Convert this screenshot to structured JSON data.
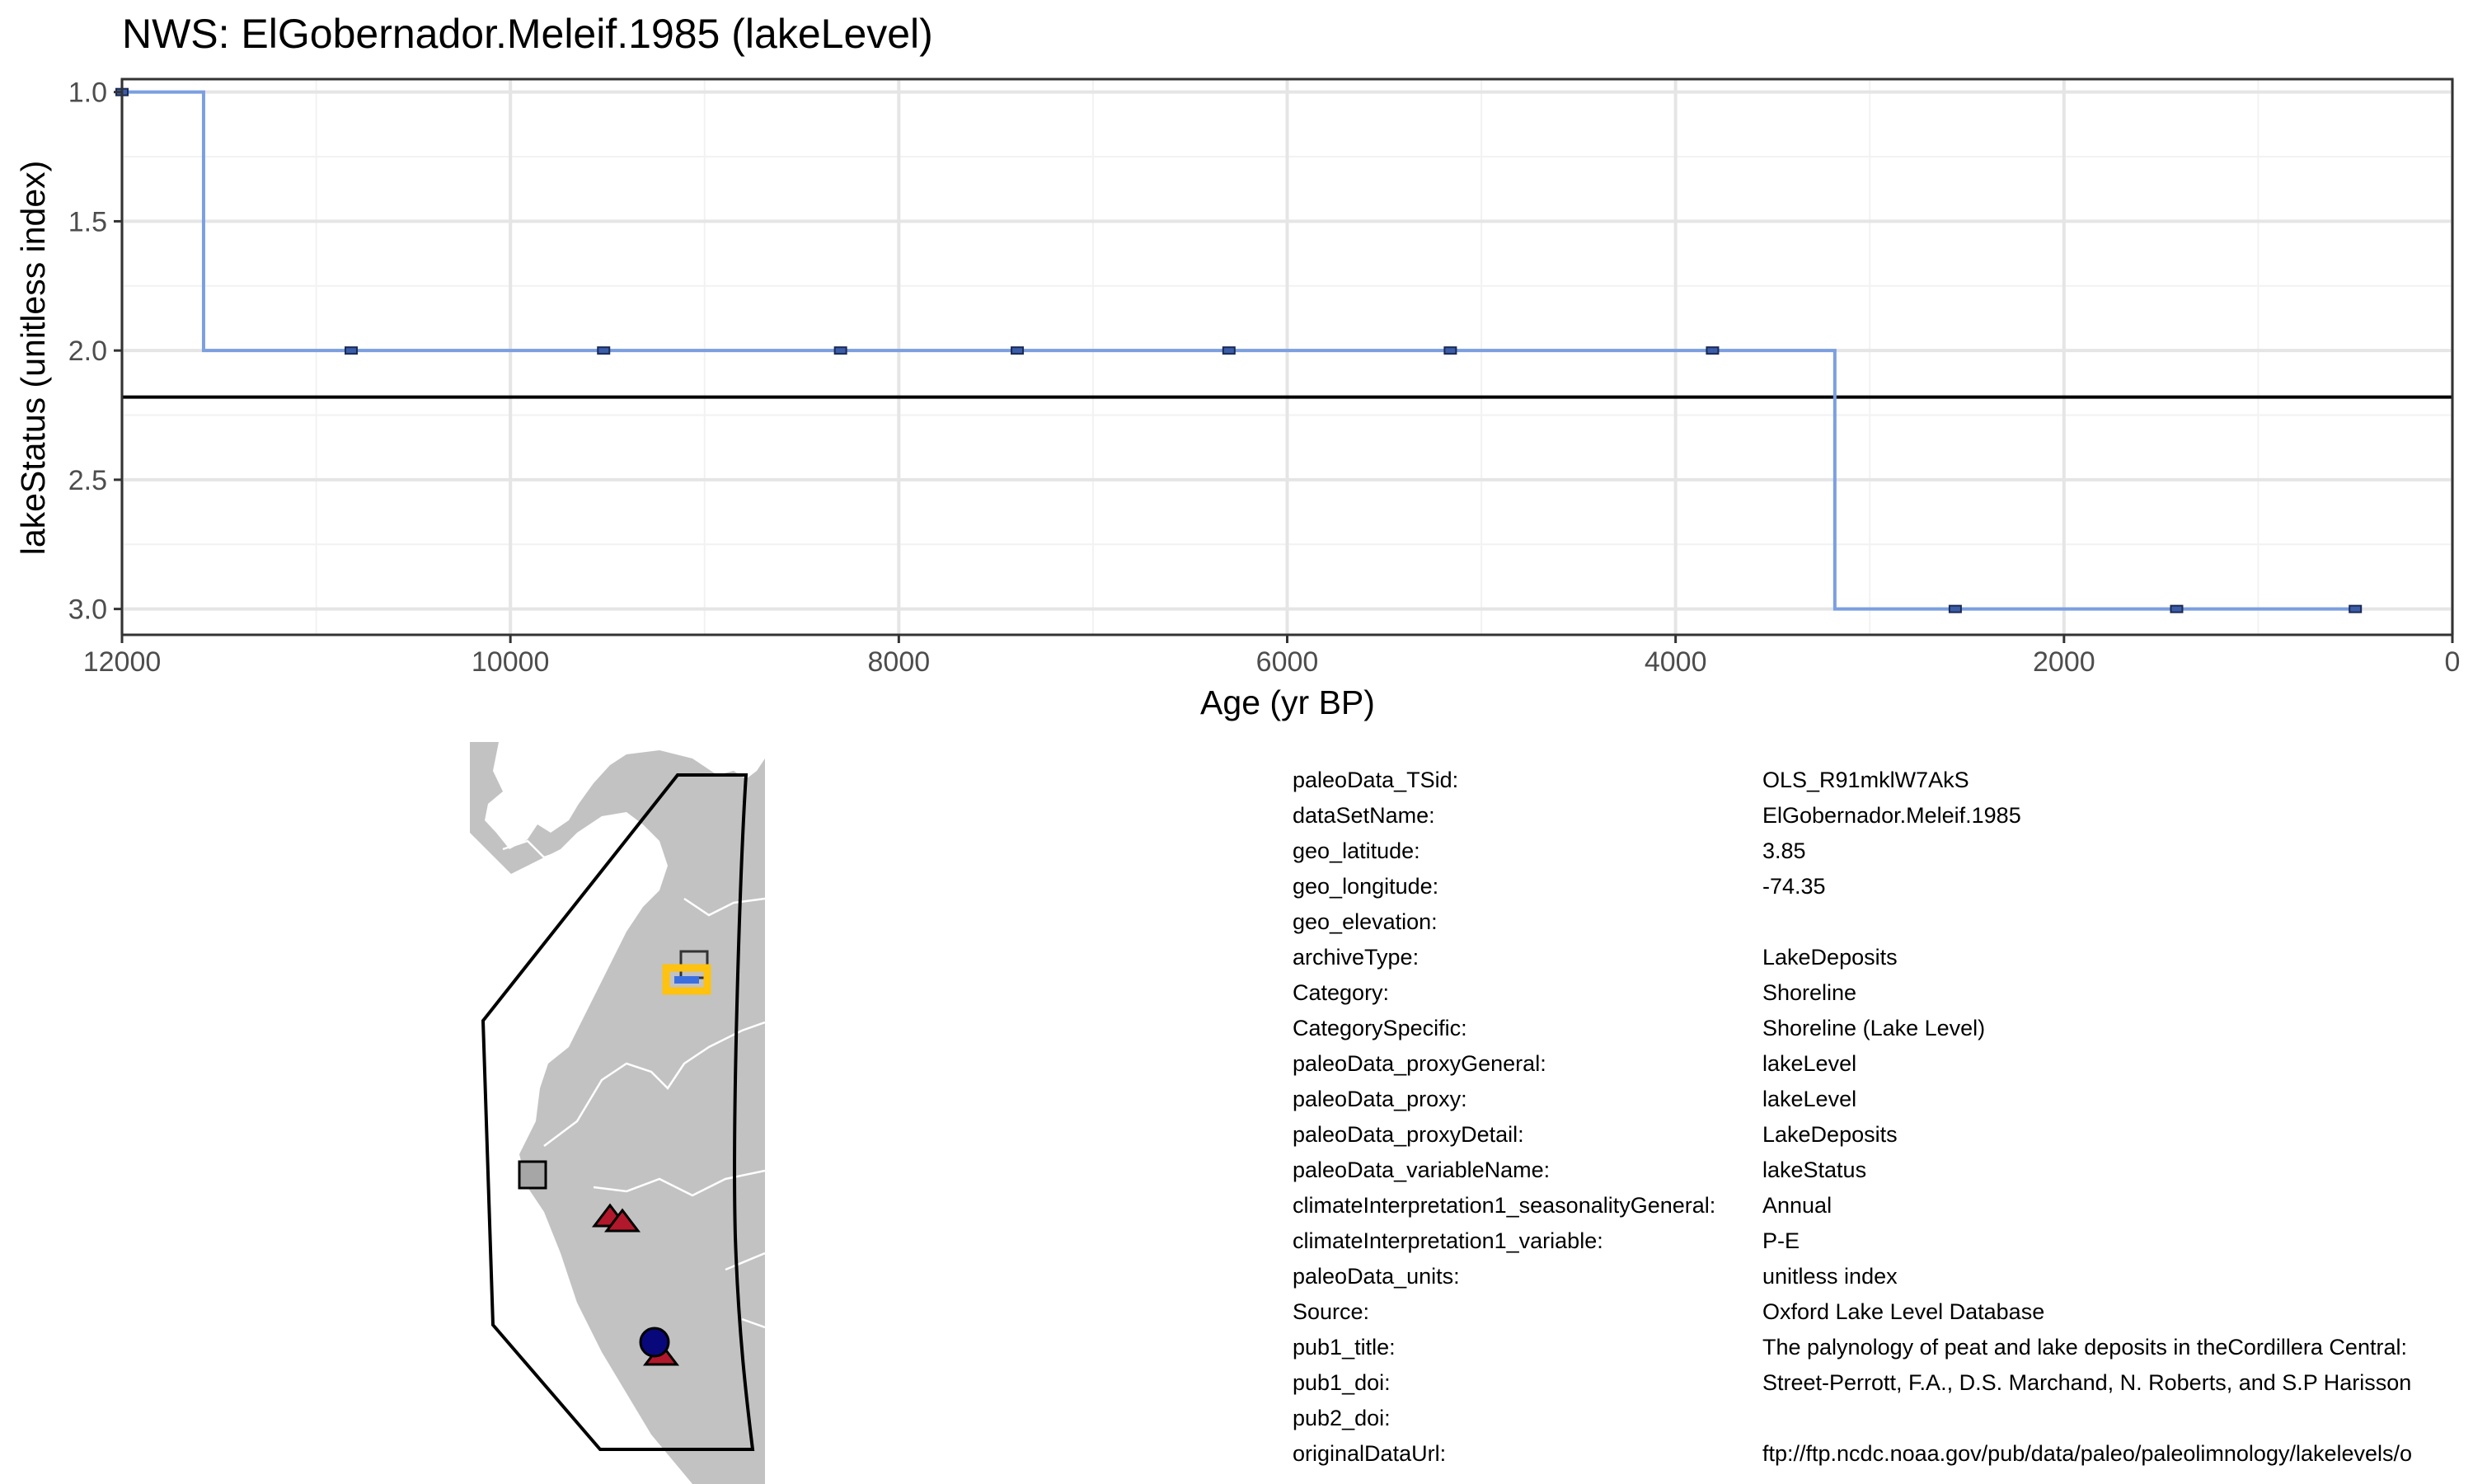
{
  "chart_data": {
    "type": "line",
    "title": "NWS: ElGobernador.Meleif.1985 (lakeLevel)",
    "xlabel": "Age (yr BP)",
    "ylabel": "lakeStatus (unitless index)",
    "xlim": [
      12000,
      0
    ],
    "ylim": [
      3.1,
      0.95
    ],
    "x_ticks": [
      12000,
      10000,
      8000,
      6000,
      4000,
      2000,
      0
    ],
    "x_tick_labels": [
      "12000",
      "10000",
      "8000",
      "6000",
      "4000",
      "2000",
      "0"
    ],
    "y_ticks": [
      1.0,
      1.5,
      2.0,
      2.5,
      3.0
    ],
    "y_tick_labels": [
      "1.0",
      "1.5",
      "2.0",
      "2.5",
      "3.0"
    ],
    "y_reversed": true,
    "x_reversed": true,
    "grid": true,
    "mean_line": 2.18,
    "series": [
      {
        "step_x": [
          12000,
          11580,
          11580,
          3180,
          3180,
          480
        ],
        "step_y": [
          1,
          1,
          2,
          2,
          3,
          3
        ],
        "points": [
          {
            "x": 12000,
            "y": 1
          },
          {
            "x": 10820,
            "y": 2
          },
          {
            "x": 9520,
            "y": 2
          },
          {
            "x": 8300,
            "y": 2
          },
          {
            "x": 7390,
            "y": 2
          },
          {
            "x": 6300,
            "y": 2
          },
          {
            "x": 5160,
            "y": 2
          },
          {
            "x": 3810,
            "y": 2
          },
          {
            "x": 2560,
            "y": 3
          },
          {
            "x": 1420,
            "y": 3
          },
          {
            "x": 500,
            "y": 3
          }
        ]
      }
    ]
  },
  "colors": {
    "series_line": "#7B9FE0",
    "point_fill": "#3B5DA8",
    "mean_line": "#000000",
    "grid_major": "#E5E5E5",
    "grid_minor": "#F2F2F2",
    "land": "#C2C2C2",
    "border_lines": "#FFFFFF",
    "site_square_fill": "#A6A6A6",
    "triangle": "#B2182B",
    "circle": "#08087A",
    "highlight_outline": "#FFC20E",
    "highlight_fill": "#3B6FE0"
  },
  "map": {
    "markers": [
      "site-square-open",
      "highlight-rect",
      "site-square-grey",
      "triangle",
      "triangle",
      "circle",
      "triangle"
    ]
  },
  "metadata": [
    {
      "key": "paleoData_TSid:",
      "value": "OLS_R91mklW7AkS"
    },
    {
      "key": "dataSetName:",
      "value": "ElGobernador.Meleif.1985"
    },
    {
      "key": "geo_latitude:",
      "value": "3.85"
    },
    {
      "key": "geo_longitude:",
      "value": "-74.35"
    },
    {
      "key": "geo_elevation:",
      "value": ""
    },
    {
      "key": "archiveType:",
      "value": "LakeDeposits"
    },
    {
      "key": "Category:",
      "value": "Shoreline"
    },
    {
      "key": "CategorySpecific:",
      "value": "Shoreline (Lake Level)"
    },
    {
      "key": "paleoData_proxyGeneral:",
      "value": "lakeLevel"
    },
    {
      "key": "paleoData_proxy:",
      "value": "lakeLevel"
    },
    {
      "key": "paleoData_proxyDetail:",
      "value": "LakeDeposits"
    },
    {
      "key": "paleoData_variableName:",
      "value": "lakeStatus"
    },
    {
      "key": "climateInterpretation1_seasonalityGeneral:",
      "value": "Annual"
    },
    {
      "key": "climateInterpretation1_variable:",
      "value": "P-E"
    },
    {
      "key": "paleoData_units:",
      "value": "unitless index"
    },
    {
      "key": "Source:",
      "value": "Oxford Lake Level Database"
    },
    {
      "key": "pub1_title:",
      "value": "The palynology of peat and lake deposits in theCordillera Central:"
    },
    {
      "key": "pub1_doi:",
      "value": "Street-Perrott, F.A., D.S. Marchand, N. Roberts, and S.P Harisson"
    },
    {
      "key": "pub2_doi:",
      "value": ""
    },
    {
      "key": "originalDataUrl:",
      "value": "ftp://ftp.ncdc.noaa.gov/pub/data/paleo/paleolimnology/lakelevels/o"
    }
  ]
}
